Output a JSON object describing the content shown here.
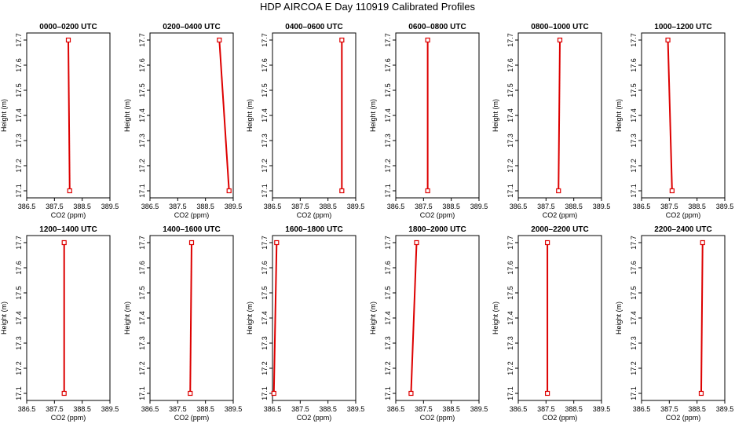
{
  "figure": {
    "title": "HDP AIRCOA E  Day 110919  Calibrated Profiles"
  },
  "chart_data": [
    {
      "type": "line",
      "title": "0000–0200 UTC",
      "xlabel": "CO2 (ppm)",
      "ylabel": "Height (m)",
      "xlim": [
        386.5,
        389.5
      ],
      "ylim": [
        17.1,
        17.7
      ],
      "series_color": "#dd0000",
      "x_ticks": [
        "386.5",
        "387.5",
        "388.5",
        "389.5"
      ],
      "y_ticks": [
        "17.1",
        "17.2",
        "17.3",
        "17.4",
        "17.5",
        "17.6",
        "17.7"
      ],
      "x": [
        388.0,
        388.05
      ],
      "y": [
        17.7,
        17.1
      ]
    },
    {
      "type": "line",
      "title": "0200–0400 UTC",
      "xlabel": "CO2 (ppm)",
      "ylabel": "Height (m)",
      "xlim": [
        386.5,
        389.5
      ],
      "ylim": [
        17.1,
        17.7
      ],
      "series_color": "#dd0000",
      "x_ticks": [
        "386.5",
        "387.5",
        "388.5",
        "389.5"
      ],
      "y_ticks": [
        "17.1",
        "17.2",
        "17.3",
        "17.4",
        "17.5",
        "17.6",
        "17.7"
      ],
      "x": [
        389.0,
        389.35
      ],
      "y": [
        17.7,
        17.1
      ]
    },
    {
      "type": "line",
      "title": "0400–0600 UTC",
      "xlabel": "CO2 (ppm)",
      "ylabel": "Height (m)",
      "xlim": [
        386.5,
        389.5
      ],
      "ylim": [
        17.1,
        17.7
      ],
      "series_color": "#dd0000",
      "x_ticks": [
        "386.5",
        "387.5",
        "388.5",
        "389.5"
      ],
      "y_ticks": [
        "17.1",
        "17.2",
        "17.3",
        "17.4",
        "17.5",
        "17.6",
        "17.7"
      ],
      "x": [
        389.0,
        389.0
      ],
      "y": [
        17.7,
        17.1
      ]
    },
    {
      "type": "line",
      "title": "0600–0800 UTC",
      "xlabel": "CO2 (ppm)",
      "ylabel": "Height (m)",
      "xlim": [
        386.5,
        389.5
      ],
      "ylim": [
        17.1,
        17.7
      ],
      "series_color": "#dd0000",
      "x_ticks": [
        "386.5",
        "387.5",
        "388.5",
        "389.5"
      ],
      "y_ticks": [
        "17.1",
        "17.2",
        "17.3",
        "17.4",
        "17.5",
        "17.6",
        "17.7"
      ],
      "x": [
        387.65,
        387.65
      ],
      "y": [
        17.7,
        17.1
      ]
    },
    {
      "type": "line",
      "title": "0800–1000 UTC",
      "xlabel": "CO2 (ppm)",
      "ylabel": "Height (m)",
      "xlim": [
        386.5,
        389.5
      ],
      "ylim": [
        17.1,
        17.7
      ],
      "series_color": "#dd0000",
      "x_ticks": [
        "386.5",
        "387.5",
        "388.5",
        "389.5"
      ],
      "y_ticks": [
        "17.1",
        "17.2",
        "17.3",
        "17.4",
        "17.5",
        "17.6",
        "17.7"
      ],
      "x": [
        388.0,
        387.95
      ],
      "y": [
        17.7,
        17.1
      ]
    },
    {
      "type": "line",
      "title": "1000–1200 UTC",
      "xlabel": "CO2 (ppm)",
      "ylabel": "Height (m)",
      "xlim": [
        386.5,
        389.5
      ],
      "ylim": [
        17.1,
        17.7
      ],
      "series_color": "#dd0000",
      "x_ticks": [
        "386.5",
        "387.5",
        "388.5",
        "389.5"
      ],
      "y_ticks": [
        "17.1",
        "17.2",
        "17.3",
        "17.4",
        "17.5",
        "17.6",
        "17.7"
      ],
      "x": [
        387.45,
        387.6
      ],
      "y": [
        17.7,
        17.1
      ]
    },
    {
      "type": "line",
      "title": "1200–1400 UTC",
      "xlabel": "CO2 (ppm)",
      "ylabel": "Height (m)",
      "xlim": [
        386.5,
        389.5
      ],
      "ylim": [
        17.1,
        17.7
      ],
      "series_color": "#dd0000",
      "x_ticks": [
        "386.5",
        "387.5",
        "388.5",
        "389.5"
      ],
      "y_ticks": [
        "17.1",
        "17.2",
        "17.3",
        "17.4",
        "17.5",
        "17.6",
        "17.7"
      ],
      "x": [
        387.85,
        387.85
      ],
      "y": [
        17.7,
        17.1
      ]
    },
    {
      "type": "line",
      "title": "1400–1600 UTC",
      "xlabel": "CO2 (ppm)",
      "ylabel": "Height (m)",
      "xlim": [
        386.5,
        389.5
      ],
      "ylim": [
        17.1,
        17.7
      ],
      "series_color": "#dd0000",
      "x_ticks": [
        "386.5",
        "387.5",
        "388.5",
        "389.5"
      ],
      "y_ticks": [
        "17.1",
        "17.2",
        "17.3",
        "17.4",
        "17.5",
        "17.6",
        "17.7"
      ],
      "x": [
        388.0,
        387.95
      ],
      "y": [
        17.7,
        17.1
      ]
    },
    {
      "type": "line",
      "title": "1600–1800 UTC",
      "xlabel": "CO2 (ppm)",
      "ylabel": "Height (m)",
      "xlim": [
        386.5,
        389.5
      ],
      "ylim": [
        17.1,
        17.7
      ],
      "series_color": "#dd0000",
      "x_ticks": [
        "386.5",
        "387.5",
        "388.5",
        "389.5"
      ],
      "y_ticks": [
        "17.1",
        "17.2",
        "17.3",
        "17.4",
        "17.5",
        "17.6",
        "17.7"
      ],
      "x": [
        386.65,
        386.55
      ],
      "y": [
        17.7,
        17.1
      ]
    },
    {
      "type": "line",
      "title": "1800–2000 UTC",
      "xlabel": "CO2 (ppm)",
      "ylabel": "Height (m)",
      "xlim": [
        386.5,
        389.5
      ],
      "ylim": [
        17.1,
        17.7
      ],
      "series_color": "#dd0000",
      "x_ticks": [
        "386.5",
        "387.5",
        "388.5",
        "389.5"
      ],
      "y_ticks": [
        "17.1",
        "17.2",
        "17.3",
        "17.4",
        "17.5",
        "17.6",
        "17.7"
      ],
      "x": [
        387.25,
        387.05
      ],
      "y": [
        17.7,
        17.1
      ]
    },
    {
      "type": "line",
      "title": "2000–2200 UTC",
      "xlabel": "CO2 (ppm)",
      "ylabel": "Height (m)",
      "xlim": [
        386.5,
        389.5
      ],
      "ylim": [
        17.1,
        17.7
      ],
      "series_color": "#dd0000",
      "x_ticks": [
        "386.5",
        "387.5",
        "388.5",
        "389.5"
      ],
      "y_ticks": [
        "17.1",
        "17.2",
        "17.3",
        "17.4",
        "17.5",
        "17.6",
        "17.7"
      ],
      "x": [
        387.55,
        387.55
      ],
      "y": [
        17.7,
        17.1
      ]
    },
    {
      "type": "line",
      "title": "2200–2400 UTC",
      "xlabel": "CO2 (ppm)",
      "ylabel": "Height (m)",
      "xlim": [
        386.5,
        389.5
      ],
      "ylim": [
        17.1,
        17.7
      ],
      "series_color": "#dd0000",
      "x_ticks": [
        "386.5",
        "387.5",
        "388.5",
        "389.5"
      ],
      "y_ticks": [
        "17.1",
        "17.2",
        "17.3",
        "17.4",
        "17.5",
        "17.6",
        "17.7"
      ],
      "x": [
        388.7,
        388.65
      ],
      "y": [
        17.7,
        17.1
      ]
    }
  ]
}
